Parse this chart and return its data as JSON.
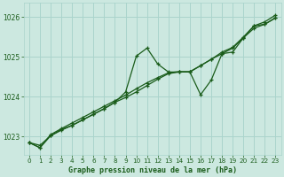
{
  "title": "Graphe pression niveau de la mer (hPa)",
  "background_color": "#cce8e0",
  "grid_color": "#aad4cc",
  "line_color": "#1a5c1a",
  "xlim": [
    -0.5,
    23.5
  ],
  "ylim": [
    1022.55,
    1026.35
  ],
  "yticks": [
    1023,
    1024,
    1025,
    1026
  ],
  "xticks": [
    0,
    1,
    2,
    3,
    4,
    5,
    6,
    7,
    8,
    9,
    10,
    11,
    12,
    13,
    14,
    15,
    16,
    17,
    18,
    19,
    20,
    21,
    22,
    23
  ],
  "series1": [
    1022.85,
    1022.72,
    1023.02,
    1023.18,
    1023.28,
    1023.42,
    1023.56,
    1023.7,
    1023.86,
    1024.12,
    1025.02,
    1025.22,
    1024.82,
    1024.62,
    1024.62,
    1024.62,
    1024.05,
    1024.42,
    1025.08,
    1025.12,
    1025.48,
    1025.78,
    1025.82,
    1025.98
  ],
  "series2": [
    1022.85,
    1022.78,
    1023.02,
    1023.16,
    1023.28,
    1023.42,
    1023.56,
    1023.7,
    1023.86,
    1023.98,
    1024.12,
    1024.28,
    1024.44,
    1024.58,
    1024.62,
    1024.62,
    1024.78,
    1024.94,
    1025.08,
    1025.22,
    1025.48,
    1025.72,
    1025.82,
    1025.98
  ],
  "series3": [
    1022.85,
    1022.72,
    1023.05,
    1023.2,
    1023.34,
    1023.48,
    1023.62,
    1023.76,
    1023.9,
    1024.04,
    1024.2,
    1024.35,
    1024.48,
    1024.6,
    1024.63,
    1024.63,
    1024.78,
    1024.94,
    1025.12,
    1025.24,
    1025.5,
    1025.78,
    1025.88,
    1026.05
  ]
}
